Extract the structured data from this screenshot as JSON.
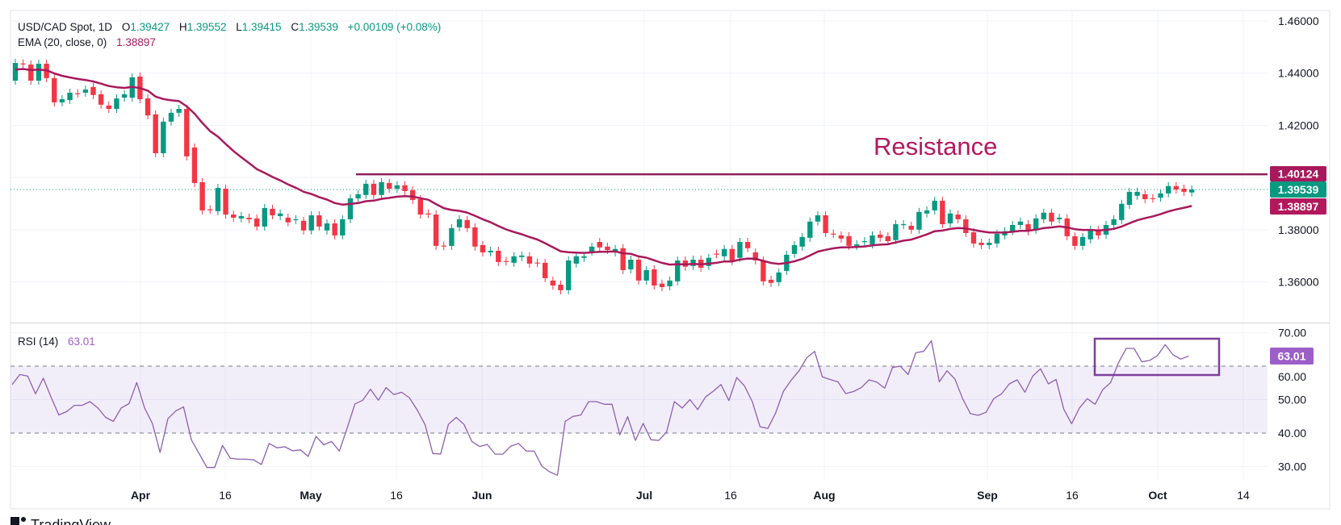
{
  "header": {
    "symbol": "USD/CAD Spot, 1D",
    "o_label": "O",
    "o": "1.39427",
    "h_label": "H",
    "h": "1.39552",
    "l_label": "L",
    "l": "1.39415",
    "c_label": "C",
    "c": "1.39539",
    "change": "+0.00109 (+0.08%)"
  },
  "ema": {
    "label": "EMA (20, close, 0)",
    "value": "1.38897",
    "period": 20
  },
  "rsi": {
    "label": "RSI (14)",
    "value": "63.01"
  },
  "annotation": {
    "text": "Resistance",
    "level": 1.40124
  },
  "price_tags": {
    "resistance": "1.40124",
    "last": "1.39539",
    "ema": "1.38897",
    "rsi": "63.01"
  },
  "colors": {
    "up": "#089981",
    "down": "#f23645",
    "ema": "#a8195c",
    "resistance": "#8e1f5c",
    "annotation_text": "#b3195e",
    "rsi_line": "#8d5fb0",
    "rsi_band": "#7e57c2",
    "rsi_box": "#7d3f9c",
    "rsi_tag": "#9c5fc8"
  },
  "footer": {
    "brand": "TradingView"
  },
  "chart_data": [
    {
      "type": "candlestick",
      "title": "USD/CAD Spot, 1D",
      "ylim": [
        1.3444,
        1.464
      ],
      "y_ticks": [
        "1.46000",
        "1.44000",
        "1.42000",
        "1.38000",
        "1.36000"
      ],
      "y_grid": [
        1.46,
        1.44,
        1.42,
        1.4,
        1.38,
        1.36
      ],
      "x_ticks": [
        {
          "label": "Apr",
          "bold": true
        },
        {
          "label": "16",
          "bold": false
        },
        {
          "label": "May",
          "bold": true
        },
        {
          "label": "16",
          "bold": false
        },
        {
          "label": "Jun",
          "bold": true
        },
        {
          "label": "Jul",
          "bold": true
        },
        {
          "label": "16",
          "bold": false
        },
        {
          "label": "Aug",
          "bold": true
        },
        {
          "label": "Sep",
          "bold": true
        },
        {
          "label": "16",
          "bold": false
        },
        {
          "label": "Oct",
          "bold": true
        },
        {
          "label": "14",
          "bold": false
        }
      ],
      "grid": true,
      "ohlc_fields": [
        "open",
        "close"
      ],
      "candles": [
        [
          1.4371,
          1.4439
        ],
        [
          1.4437,
          1.4435
        ],
        [
          1.4433,
          1.4371
        ],
        [
          1.4371,
          1.4436
        ],
        [
          1.4436,
          1.4381
        ],
        [
          1.4381,
          1.4288
        ],
        [
          1.4288,
          1.43
        ],
        [
          1.4297,
          1.4325
        ],
        [
          1.4323,
          1.4321
        ],
        [
          1.4325,
          1.4337
        ],
        [
          1.4347,
          1.4316
        ],
        [
          1.4319,
          1.4279
        ],
        [
          1.4276,
          1.4263
        ],
        [
          1.4263,
          1.4303
        ],
        [
          1.4306,
          1.4319
        ],
        [
          1.4306,
          1.4384
        ],
        [
          1.4387,
          1.43
        ],
        [
          1.4303,
          1.4238
        ],
        [
          1.4242,
          1.4093
        ],
        [
          1.4093,
          1.4214
        ],
        [
          1.4214,
          1.4248
        ],
        [
          1.4248,
          1.4263
        ],
        [
          1.4263,
          1.4081
        ],
        [
          1.4115,
          1.3979
        ],
        [
          1.3982,
          1.3874
        ],
        [
          1.3878,
          1.3876
        ],
        [
          1.3871,
          1.396
        ],
        [
          1.3957,
          1.3858
        ],
        [
          1.3858,
          1.3846
        ],
        [
          1.3843,
          1.3852
        ],
        [
          1.3846,
          1.384
        ],
        [
          1.3843,
          1.3812
        ],
        [
          1.3812,
          1.3883
        ],
        [
          1.388,
          1.3855
        ],
        [
          1.3852,
          1.3862
        ],
        [
          1.3846,
          1.3828
        ],
        [
          1.3837,
          1.384
        ],
        [
          1.3834,
          1.3797
        ],
        [
          1.3797,
          1.3855
        ],
        [
          1.3855,
          1.3812
        ],
        [
          1.3797,
          1.3824
        ],
        [
          1.3824,
          1.3778
        ],
        [
          1.3778,
          1.384
        ],
        [
          1.384,
          1.392
        ],
        [
          1.392,
          1.3936
        ],
        [
          1.3933,
          1.3976
        ],
        [
          1.3976,
          1.3933
        ],
        [
          1.3933,
          1.3982
        ],
        [
          1.3979,
          1.3957
        ],
        [
          1.3957,
          1.397
        ],
        [
          1.397,
          1.3948
        ],
        [
          1.3951,
          1.3914
        ],
        [
          1.3917,
          1.3858
        ],
        [
          1.3862,
          1.386
        ],
        [
          1.3858,
          1.3738
        ],
        [
          1.3739,
          1.3737
        ],
        [
          1.3738,
          1.3806
        ],
        [
          1.3809,
          1.384
        ],
        [
          1.3837,
          1.3806
        ],
        [
          1.3809,
          1.3735
        ],
        [
          1.3741,
          1.3713
        ],
        [
          1.3713,
          1.3719
        ],
        [
          1.3719,
          1.3676
        ],
        [
          1.368,
          1.3678
        ],
        [
          1.3673,
          1.3698
        ],
        [
          1.3695,
          1.3701
        ],
        [
          1.3698,
          1.367
        ],
        [
          1.3674,
          1.3672
        ],
        [
          1.3673,
          1.3614
        ],
        [
          1.3605,
          1.3586
        ],
        [
          1.3589,
          1.3568
        ],
        [
          1.3568,
          1.3682
        ],
        [
          1.367,
          1.3698
        ],
        [
          1.3692,
          1.3698
        ],
        [
          1.3716,
          1.3735
        ],
        [
          1.3753,
          1.3732
        ],
        [
          1.3735,
          1.3722
        ],
        [
          1.3713,
          1.3726
        ],
        [
          1.3729,
          1.3645
        ],
        [
          1.3648,
          1.3685
        ],
        [
          1.3685,
          1.3605
        ],
        [
          1.3605,
          1.3645
        ],
        [
          1.3648,
          1.3586
        ],
        [
          1.3593,
          1.358
        ],
        [
          1.3583,
          1.3605
        ],
        [
          1.3602,
          1.3682
        ],
        [
          1.3682,
          1.3658
        ],
        [
          1.3661,
          1.3685
        ],
        [
          1.3685,
          1.3654
        ],
        [
          1.3661,
          1.3692
        ],
        [
          1.3708,
          1.3706
        ],
        [
          1.3698,
          1.3726
        ],
        [
          1.3726,
          1.3679
        ],
        [
          1.3692,
          1.3753
        ],
        [
          1.3753,
          1.3729
        ],
        [
          1.3713,
          1.3682
        ],
        [
          1.3682,
          1.3602
        ],
        [
          1.3608,
          1.3596
        ],
        [
          1.3599,
          1.3636
        ],
        [
          1.3642,
          1.3704
        ],
        [
          1.3707,
          1.3741
        ],
        [
          1.3735,
          1.3772
        ],
        [
          1.3769,
          1.3831
        ],
        [
          1.3831,
          1.3855
        ],
        [
          1.3855,
          1.3787
        ],
        [
          1.3785,
          1.3783
        ],
        [
          1.3778,
          1.3766
        ],
        [
          1.3775,
          1.3738
        ],
        [
          1.3738,
          1.3744
        ],
        [
          1.3753,
          1.3756
        ],
        [
          1.3744,
          1.3778
        ],
        [
          1.3781,
          1.3769
        ],
        [
          1.3775,
          1.3756
        ],
        [
          1.376,
          1.3821
        ],
        [
          1.3818,
          1.3821
        ],
        [
          1.3815,
          1.38
        ],
        [
          1.38,
          1.3868
        ],
        [
          1.3862,
          1.3874
        ],
        [
          1.3874,
          1.3911
        ],
        [
          1.3911,
          1.3821
        ],
        [
          1.3824,
          1.3862
        ],
        [
          1.3858,
          1.384
        ],
        [
          1.384,
          1.3787
        ],
        [
          1.379,
          1.3747
        ],
        [
          1.375,
          1.3741
        ],
        [
          1.3741,
          1.375
        ],
        [
          1.3747,
          1.3784
        ],
        [
          1.3778,
          1.3794
        ],
        [
          1.3794,
          1.3818
        ],
        [
          1.3818,
          1.3831
        ],
        [
          1.3821,
          1.3794
        ],
        [
          1.38,
          1.3843
        ],
        [
          1.384,
          1.3865
        ],
        [
          1.3865,
          1.3831
        ],
        [
          1.384,
          1.3846
        ],
        [
          1.3843,
          1.3775
        ],
        [
          1.3775,
          1.3738
        ],
        [
          1.3738,
          1.3772
        ],
        [
          1.3763,
          1.38
        ],
        [
          1.38,
          1.3778
        ],
        [
          1.3781,
          1.3818
        ],
        [
          1.3818,
          1.384
        ],
        [
          1.3837,
          1.3899
        ],
        [
          1.3895,
          1.3945
        ],
        [
          1.393,
          1.3945
        ],
        [
          1.3936,
          1.3917
        ],
        [
          1.3921,
          1.3919
        ],
        [
          1.3923,
          1.3939
        ],
        [
          1.3939,
          1.3967
        ],
        [
          1.3967,
          1.3954
        ],
        [
          1.3957,
          1.3945
        ],
        [
          1.39427,
          1.39539
        ]
      ],
      "overlays": [
        {
          "name": "EMA (20, close, 0)",
          "type": "line",
          "last": 1.38897
        },
        {
          "name": "Resistance",
          "type": "hline",
          "value": 1.40124
        }
      ]
    },
    {
      "type": "line",
      "title": "RSI (14)",
      "ylim": [
        27.2,
        72.8
      ],
      "y_ticks": [
        "70.00",
        "60.00",
        "50.00",
        "40.00",
        "30.00"
      ],
      "bands": [
        40,
        60
      ],
      "values": [
        54.5,
        57.5,
        57.0,
        51.7,
        56.4,
        50.7,
        45.4,
        46.4,
        48.3,
        48.3,
        49.4,
        47.5,
        44.7,
        43.5,
        47.5,
        48.8,
        55.1,
        47.5,
        42.9,
        34.2,
        44.3,
        46.6,
        47.8,
        38.0,
        33.9,
        29.7,
        29.7,
        36.3,
        32.5,
        32.2,
        32.2,
        32.0,
        30.6,
        36.9,
        35.6,
        35.9,
        34.7,
        35.0,
        33.0,
        39.0,
        36.5,
        37.5,
        34.6,
        41.4,
        48.7,
        49.8,
        53.1,
        49.8,
        53.6,
        51.5,
        52.2,
        50.5,
        46.9,
        42.5,
        33.9,
        33.7,
        42.6,
        44.7,
        42.6,
        37.5,
        36.0,
        36.6,
        33.7,
        33.7,
        36.1,
        36.9,
        34.6,
        34.6,
        30.1,
        28.4,
        27.4,
        43.5,
        45.0,
        45.4,
        49.4,
        49.4,
        48.6,
        48.6,
        39.5,
        44.9,
        37.8,
        42.9,
        38.0,
        37.8,
        40.3,
        49.4,
        47.5,
        50.0,
        47.0,
        50.8,
        52.5,
        54.5,
        49.7,
        56.6,
        54.1,
        49.4,
        41.9,
        41.4,
        46.0,
        52.5,
        55.8,
        58.6,
        62.5,
        64.4,
        56.8,
        56.0,
        55.3,
        51.8,
        52.4,
        53.6,
        55.9,
        55.2,
        53.4,
        59.6,
        60.0,
        57.5,
        64.0,
        64.4,
        67.6,
        55.3,
        58.6,
        56.2,
        50.3,
        45.8,
        45.3,
        46.2,
        50.3,
        51.7,
        54.7,
        55.9,
        52.2,
        57.0,
        59.2,
        54.7,
        56.0,
        47.0,
        42.8,
        47.5,
        50.3,
        48.6,
        53.0,
        55.1,
        61.0,
        65.3,
        65.3,
        61.3,
        61.7,
        63.1,
        66.4,
        63.4,
        62.1,
        63.01
      ]
    }
  ]
}
